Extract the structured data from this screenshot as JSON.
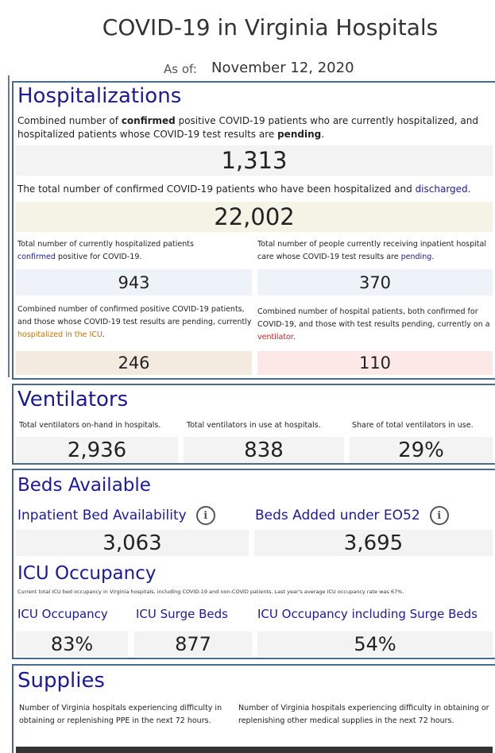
{
  "header": {
    "title": "COVID-19 in Virginia Hospitals",
    "as_of_label": "As of:",
    "as_of_date": "November 12, 2020"
  },
  "hospitalizations": {
    "heading": "Hospitalizations",
    "combined_desc_1": "Combined number of ",
    "combined_desc_bold1": "confirmed",
    "combined_desc_2": " positive COVID-19 patients who are currently hospitalized, and hospitalized patients whose COVID-19 test results are ",
    "combined_desc_bold2": "pending",
    "combined_desc_3": ".",
    "combined_value": "1,313",
    "discharged_desc_1": "The total number of confirmed COVID-19 patients who have been hospitalized and ",
    "discharged_desc_link": "discharged",
    "discharged_desc_2": ".",
    "discharged_value": "22,002",
    "confirmed_desc_1": "Total number of currently hospitalized patients",
    "confirmed_desc_link": "confirmed",
    "confirmed_desc_2": " positive for COVID-19.",
    "confirmed_value": "943",
    "pending_desc_1": "Total number of people currently receiving inpatient hospital care whose COVID-19 test results are ",
    "pending_desc_link": "pending",
    "pending_desc_2": ".",
    "pending_value": "370",
    "icu_desc_1": "Combined number of confirmed positive COVID-19 patients, and those whose COVID-19 test results are pending, currently ",
    "icu_desc_link": "hospitalized in the ICU",
    "icu_desc_2": ".",
    "icu_value": "246",
    "vent_desc_1": "Combined number of hospital patients, both confirmed for COVID-19, and those with test results pending, currently on a ",
    "vent_desc_link": "ventilator",
    "vent_desc_2": ".",
    "vent_value": "110",
    "colors": {
      "gray": "#f3f3f3",
      "beige": "#f5f2e6",
      "blue": "#edf3f8",
      "tan": "#f3ebe0",
      "pink": "#fde8e8"
    }
  },
  "ventilators": {
    "heading": "Ventilators",
    "onhand_label": "Total ventilators on-hand in hospitals.",
    "onhand_value": "2,936",
    "inuse_label": "Total ventilators in use at hospitals.",
    "inuse_value": "838",
    "share_label": "Share of total ventilators in use.",
    "share_value": "29%"
  },
  "beds": {
    "heading": "Beds Available",
    "inpatient_label": "Inpatient Bed Availability",
    "inpatient_value": "3,063",
    "eo52_label": "Beds Added under EO52",
    "eo52_value": "3,695",
    "icu_heading": "ICU Occupancy",
    "icu_note": "Current total ICU bed occupancy in Virginia hospitals, including COVID-19 and non-COVID patients. Last year's average ICU occupancy rate was 67%.",
    "icu_occ_label": "ICU Occupancy",
    "icu_occ_value": "83%",
    "surge_label": "ICU Surge Beds",
    "surge_value": "877",
    "incl_label": "ICU Occupancy including Surge Beds",
    "incl_value": "54%"
  },
  "supplies": {
    "heading": "Supplies",
    "ppe_desc": "Number of Virginia hospitals experiencing difficulty in obtaining or replenishing PPE in the next 72 hours.",
    "other_desc": "Number of Virginia hospitals experiencing difficulty in obtaining or replenishing other medical supplies in the next 72 hours."
  }
}
